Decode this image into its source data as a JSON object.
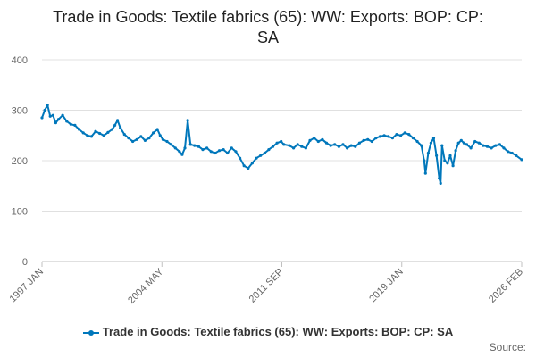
{
  "chart_data": {
    "type": "line",
    "title_lines": [
      "Trade in Goods: Textile fabrics (65): WW: Exports: BOP: CP:",
      "SA"
    ],
    "x_tick_labels": [
      "1997 JAN",
      "2004 MAY",
      "2011 SEP",
      "2019 JAN",
      "2026 FEB"
    ],
    "y_tick_labels": [
      "0",
      "100",
      "200",
      "300",
      "400"
    ],
    "ylim": [
      0,
      400
    ],
    "grid": true,
    "legend_placement": "bottom",
    "series": [
      {
        "name": "Trade in Goods: Textile fabrics (65): WW: Exports: BOP: CP: SA",
        "color": "#0077bb",
        "points": [
          [
            "1997-01",
            285
          ],
          [
            "1997-03",
            300
          ],
          [
            "1997-05",
            310
          ],
          [
            "1997-07",
            288
          ],
          [
            "1997-09",
            290
          ],
          [
            "1997-11",
            275
          ],
          [
            "1998-01",
            282
          ],
          [
            "1998-04",
            290
          ],
          [
            "1998-07",
            278
          ],
          [
            "1998-10",
            272
          ],
          [
            "1999-01",
            270
          ],
          [
            "1999-04",
            262
          ],
          [
            "1999-07",
            255
          ],
          [
            "1999-10",
            250
          ],
          [
            "2000-01",
            248
          ],
          [
            "2000-04",
            258
          ],
          [
            "2000-07",
            254
          ],
          [
            "2000-10",
            250
          ],
          [
            "2001-01",
            256
          ],
          [
            "2001-04",
            262
          ],
          [
            "2001-06",
            270
          ],
          [
            "2001-08",
            280
          ],
          [
            "2001-10",
            265
          ],
          [
            "2002-01",
            252
          ],
          [
            "2002-04",
            245
          ],
          [
            "2002-07",
            238
          ],
          [
            "2002-10",
            242
          ],
          [
            "2003-01",
            248
          ],
          [
            "2003-04",
            240
          ],
          [
            "2003-07",
            245
          ],
          [
            "2003-10",
            255
          ],
          [
            "2004-01",
            262
          ],
          [
            "2004-03",
            250
          ],
          [
            "2004-05",
            242
          ],
          [
            "2004-08",
            238
          ],
          [
            "2004-11",
            232
          ],
          [
            "2005-02",
            225
          ],
          [
            "2005-05",
            218
          ],
          [
            "2005-07",
            212
          ],
          [
            "2005-09",
            225
          ],
          [
            "2005-11",
            280
          ],
          [
            "2006-01",
            232
          ],
          [
            "2006-04",
            230
          ],
          [
            "2006-07",
            228
          ],
          [
            "2006-10",
            222
          ],
          [
            "2007-01",
            225
          ],
          [
            "2007-04",
            218
          ],
          [
            "2007-07",
            215
          ],
          [
            "2007-10",
            220
          ],
          [
            "2008-01",
            222
          ],
          [
            "2008-04",
            215
          ],
          [
            "2008-07",
            225
          ],
          [
            "2008-10",
            218
          ],
          [
            "2009-01",
            205
          ],
          [
            "2009-04",
            190
          ],
          [
            "2009-07",
            185
          ],
          [
            "2009-10",
            195
          ],
          [
            "2010-01",
            205
          ],
          [
            "2010-04",
            210
          ],
          [
            "2010-07",
            215
          ],
          [
            "2010-10",
            222
          ],
          [
            "2011-01",
            228
          ],
          [
            "2011-04",
            235
          ],
          [
            "2011-07",
            238
          ],
          [
            "2011-09",
            232
          ],
          [
            "2012-01",
            230
          ],
          [
            "2012-04",
            225
          ],
          [
            "2012-07",
            232
          ],
          [
            "2012-10",
            228
          ],
          [
            "2013-01",
            225
          ],
          [
            "2013-04",
            240
          ],
          [
            "2013-07",
            245
          ],
          [
            "2013-10",
            238
          ],
          [
            "2014-01",
            242
          ],
          [
            "2014-04",
            235
          ],
          [
            "2014-07",
            230
          ],
          [
            "2014-10",
            232
          ],
          [
            "2015-01",
            228
          ],
          [
            "2015-04",
            232
          ],
          [
            "2015-07",
            225
          ],
          [
            "2015-10",
            230
          ],
          [
            "2016-01",
            228
          ],
          [
            "2016-04",
            235
          ],
          [
            "2016-07",
            240
          ],
          [
            "2016-10",
            242
          ],
          [
            "2017-01",
            238
          ],
          [
            "2017-04",
            245
          ],
          [
            "2017-07",
            248
          ],
          [
            "2017-10",
            250
          ],
          [
            "2018-01",
            248
          ],
          [
            "2018-04",
            245
          ],
          [
            "2018-07",
            252
          ],
          [
            "2018-10",
            250
          ],
          [
            "2019-01",
            255
          ],
          [
            "2019-04",
            252
          ],
          [
            "2019-07",
            245
          ],
          [
            "2019-10",
            238
          ],
          [
            "2020-01",
            230
          ],
          [
            "2020-03",
            200
          ],
          [
            "2020-04",
            175
          ],
          [
            "2020-06",
            215
          ],
          [
            "2020-08",
            235
          ],
          [
            "2020-10",
            245
          ],
          [
            "2020-12",
            210
          ],
          [
            "2021-02",
            165
          ],
          [
            "2021-03",
            155
          ],
          [
            "2021-04",
            230
          ],
          [
            "2021-06",
            200
          ],
          [
            "2021-08",
            195
          ],
          [
            "2021-10",
            210
          ],
          [
            "2021-12",
            190
          ],
          [
            "2022-02",
            220
          ],
          [
            "2022-04",
            235
          ],
          [
            "2022-06",
            240
          ],
          [
            "2022-08",
            235
          ],
          [
            "2022-10",
            232
          ],
          [
            "2023-01",
            225
          ],
          [
            "2023-04",
            238
          ],
          [
            "2023-07",
            235
          ],
          [
            "2023-10",
            230
          ],
          [
            "2024-01",
            228
          ],
          [
            "2024-04",
            225
          ],
          [
            "2024-07",
            230
          ],
          [
            "2024-10",
            232
          ],
          [
            "2025-01",
            225
          ],
          [
            "2025-04",
            218
          ],
          [
            "2025-07",
            215
          ],
          [
            "2025-10",
            210
          ],
          [
            "2026-02",
            202
          ]
        ]
      }
    ]
  },
  "legend": {
    "label": "Trade in Goods: Textile fabrics (65): WW: Exports: BOP: CP: SA"
  },
  "source": {
    "label": "Source:"
  }
}
